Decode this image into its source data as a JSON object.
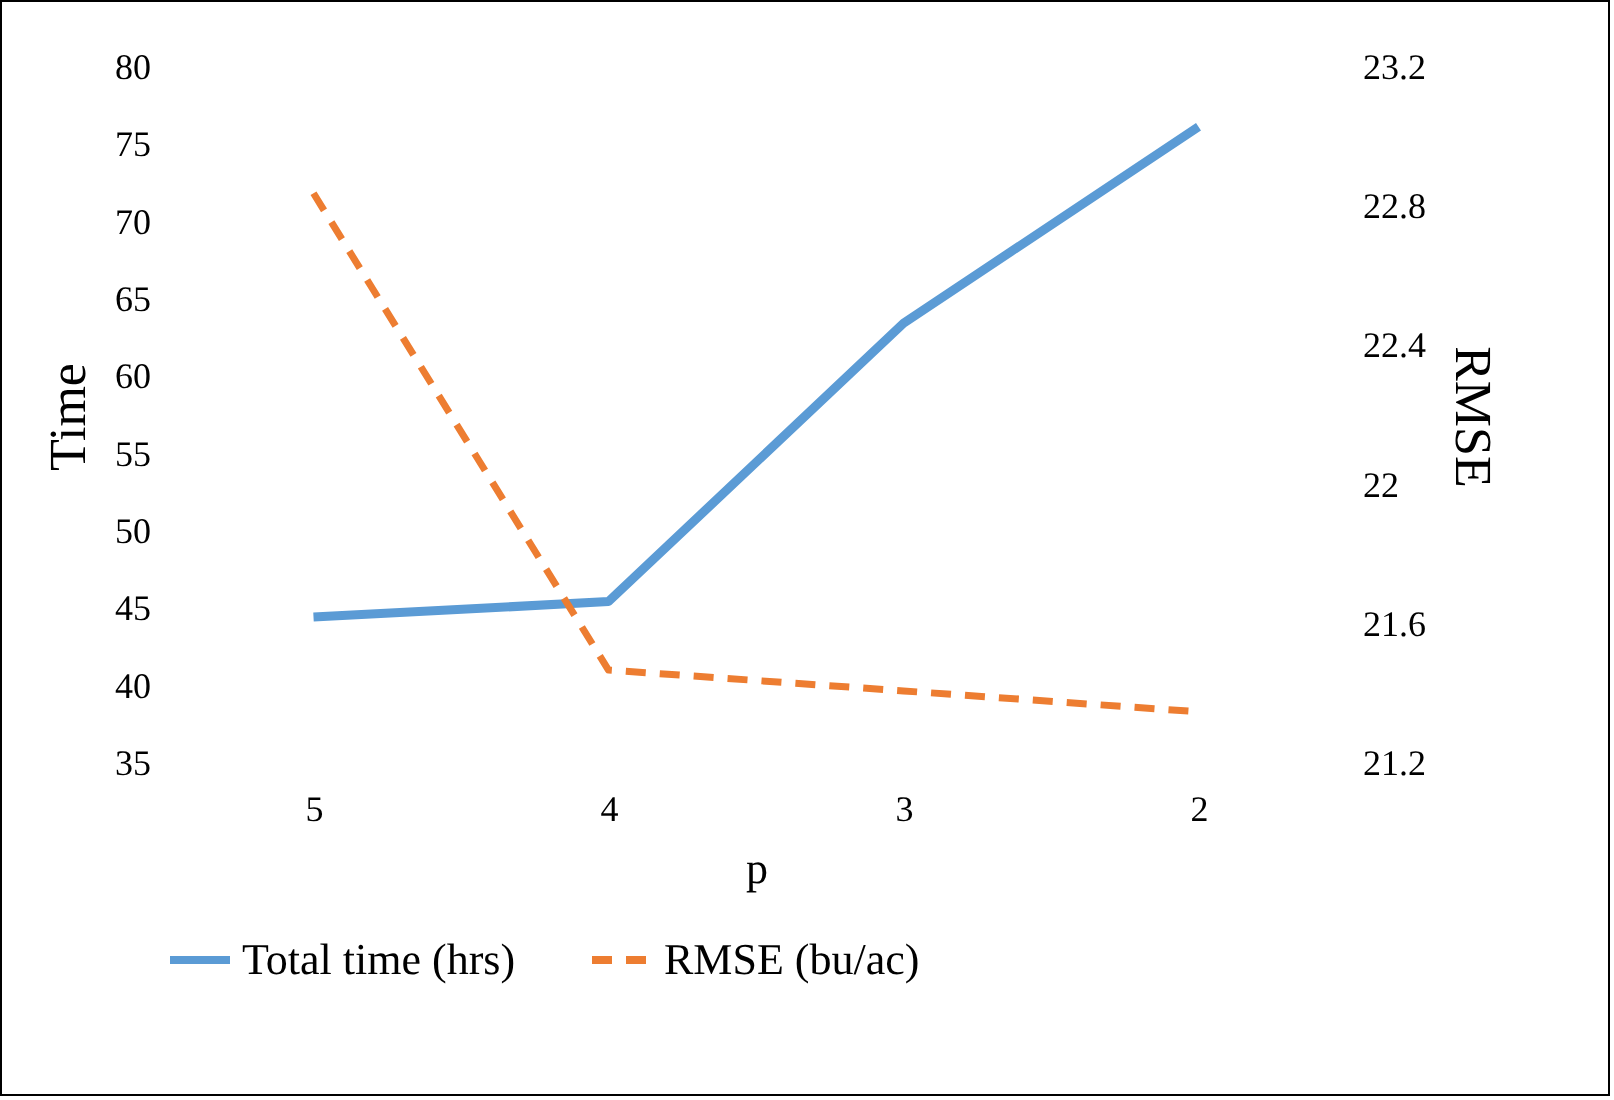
{
  "chart_data": {
    "type": "line",
    "xlabel": "p",
    "ylabel": "Time",
    "y2label": "RMSE",
    "categories": [
      "5",
      "4",
      "3",
      "2"
    ],
    "series": [
      {
        "name": "Total time (hrs)",
        "color": "#5b9bd5",
        "line_style": "solid",
        "values": [
          44.5,
          45.5,
          63.5,
          76.2
        ]
      },
      {
        "name": "RMSE (bu/ac)",
        "color": "#ed7d31",
        "line_style": "dashed",
        "axis": "y2",
        "values": [
          22.84,
          21.47,
          21.41,
          21.35
        ]
      }
    ],
    "ylim": [
      35,
      80
    ],
    "yticks": [
      35,
      40,
      45,
      50,
      55,
      60,
      65,
      70,
      75,
      80
    ],
    "y2lim": [
      21.2,
      23.2
    ],
    "y2ticks": [
      21.2,
      21.6,
      22,
      22.4,
      22.8,
      23.2
    ],
    "grid": false,
    "legend": "bottom",
    "marker": "none"
  }
}
